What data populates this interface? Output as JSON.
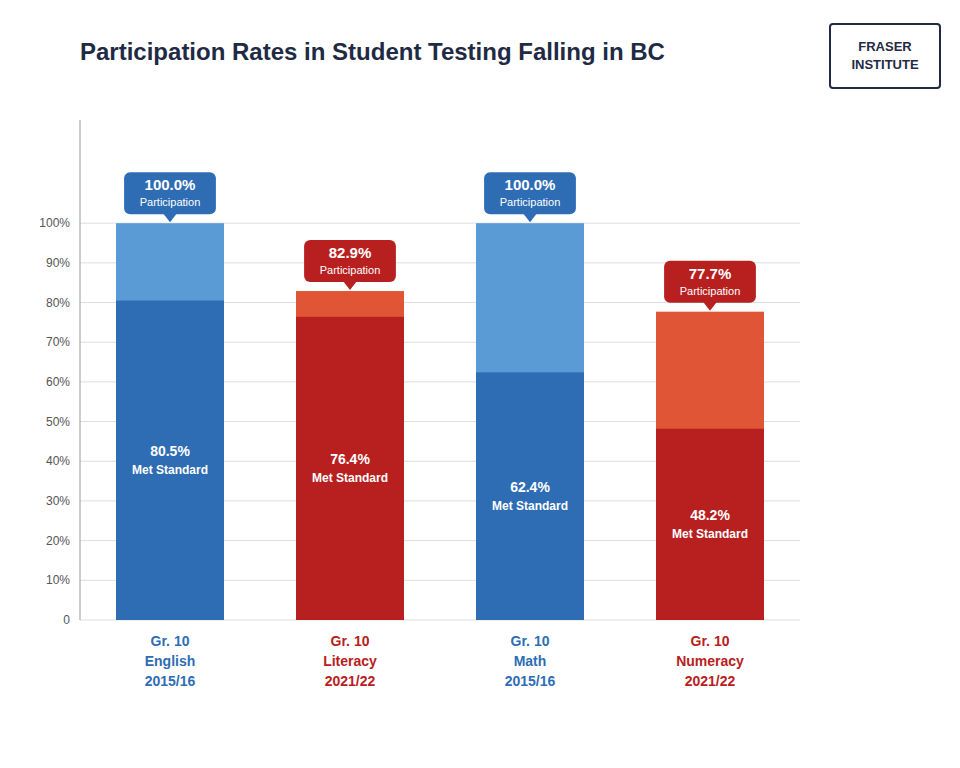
{
  "chart_data": {
    "type": "bar",
    "title": "Participation Rates in Student Testing Falling in BC",
    "categories": [
      "Gr. 10\nEnglish\n2015/16",
      "Gr. 10\nLiteracy\n2021/22",
      "Gr. 10\nMath\n2015/16",
      "Gr. 10\nNumeracy\n2021/22"
    ],
    "series": [
      {
        "name": "Met Standard",
        "values": [
          80.5,
          76.4,
          62.4,
          48.2
        ],
        "value_labels": [
          "80.5%",
          "76.4%",
          "62.4%",
          "48.2%"
        ],
        "colors": [
          "#2e6db4",
          "#b82020",
          "#2e6db4",
          "#b82020"
        ]
      },
      {
        "name": "Participation",
        "values": [
          100.0,
          82.9,
          100.0,
          77.7
        ],
        "value_labels": [
          "100.0%",
          "82.9%",
          "100.0%",
          "77.7%"
        ],
        "colors": [
          "#5b9bd5",
          "#e05535",
          "#5b9bd5",
          "#e05535"
        ]
      }
    ],
    "stacked": false,
    "data_labels": true,
    "grid": true,
    "ylim": [
      0,
      126
    ],
    "yticks": [
      0,
      {
        "value": 10,
        "label": "10%"
      },
      {
        "value": 20,
        "label": "20%"
      },
      {
        "value": 30,
        "label": "30%"
      },
      {
        "value": 40,
        "label": "40%"
      },
      {
        "value": 50,
        "label": "50%"
      },
      {
        "value": 60,
        "label": "60%"
      },
      {
        "value": 70,
        "label": "70%"
      },
      {
        "value": 80,
        "label": "80%"
      },
      {
        "value": 90,
        "label": "90%"
      },
      {
        "value": 100,
        "label": "100%"
      }
    ],
    "annotations": [
      "FRASER\nINSTITUTE"
    ]
  }
}
